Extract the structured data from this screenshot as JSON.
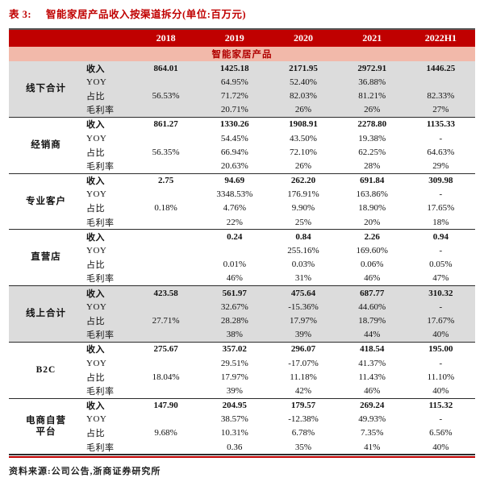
{
  "title": {
    "prefix": "表 3:",
    "text": "智能家居产品收入按渠道拆分(单位:百万元)"
  },
  "table": {
    "year_headers": [
      "2018",
      "2019",
      "2020",
      "2021",
      "2022H1"
    ],
    "product_header": "智能家居产品",
    "groups": [
      {
        "name": "线下合计",
        "shaded": true,
        "rows": [
          {
            "label": "收入",
            "values": [
              "864.01",
              "1425.18",
              "2171.95",
              "2972.91",
              "1446.25"
            ]
          },
          {
            "label": "YOY",
            "values": [
              "",
              "64.95%",
              "52.40%",
              "36.88%",
              ""
            ]
          },
          {
            "label": "占比",
            "values": [
              "56.53%",
              "71.72%",
              "82.03%",
              "81.21%",
              "82.33%"
            ]
          },
          {
            "label": "毛利率",
            "values": [
              "",
              "20.71%",
              "26%",
              "26%",
              "27%"
            ]
          }
        ]
      },
      {
        "name": "经销商",
        "shaded": false,
        "rows": [
          {
            "label": "收入",
            "values": [
              "861.27",
              "1330.26",
              "1908.91",
              "2278.80",
              "1135.33"
            ]
          },
          {
            "label": "YOY",
            "values": [
              "",
              "54.45%",
              "43.50%",
              "19.38%",
              "-"
            ]
          },
          {
            "label": "占比",
            "values": [
              "56.35%",
              "66.94%",
              "72.10%",
              "62.25%",
              "64.63%"
            ]
          },
          {
            "label": "毛利率",
            "values": [
              "",
              "20.63%",
              "26%",
              "28%",
              "29%"
            ]
          }
        ]
      },
      {
        "name": "专业客户",
        "shaded": false,
        "rows": [
          {
            "label": "收入",
            "values": [
              "2.75",
              "94.69",
              "262.20",
              "691.84",
              "309.98"
            ]
          },
          {
            "label": "YOY",
            "values": [
              "",
              "3348.53%",
              "176.91%",
              "163.86%",
              "-"
            ]
          },
          {
            "label": "占比",
            "values": [
              "0.18%",
              "4.76%",
              "9.90%",
              "18.90%",
              "17.65%"
            ]
          },
          {
            "label": "毛利率",
            "values": [
              "",
              "22%",
              "25%",
              "20%",
              "18%"
            ]
          }
        ]
      },
      {
        "name": "直营店",
        "shaded": false,
        "rows": [
          {
            "label": "收入",
            "values": [
              "",
              "0.24",
              "0.84",
              "2.26",
              "0.94"
            ]
          },
          {
            "label": "YOY",
            "values": [
              "",
              "",
              "255.16%",
              "169.60%",
              "-"
            ]
          },
          {
            "label": "占比",
            "values": [
              "",
              "0.01%",
              "0.03%",
              "0.06%",
              "0.05%"
            ]
          },
          {
            "label": "毛利率",
            "values": [
              "",
              "46%",
              "31%",
              "46%",
              "47%"
            ]
          }
        ]
      },
      {
        "name": "线上合计",
        "shaded": true,
        "rows": [
          {
            "label": "收入",
            "values": [
              "423.58",
              "561.97",
              "475.64",
              "687.77",
              "310.32"
            ]
          },
          {
            "label": "YOY",
            "values": [
              "",
              "32.67%",
              "-15.36%",
              "44.60%",
              "-"
            ]
          },
          {
            "label": "占比",
            "values": [
              "27.71%",
              "28.28%",
              "17.97%",
              "18.79%",
              "17.67%"
            ]
          },
          {
            "label": "毛利率",
            "values": [
              "",
              "38%",
              "39%",
              "44%",
              "40%"
            ]
          }
        ]
      },
      {
        "name": "B2C",
        "shaded": false,
        "rows": [
          {
            "label": "收入",
            "values": [
              "275.67",
              "357.02",
              "296.07",
              "418.54",
              "195.00"
            ]
          },
          {
            "label": "YOY",
            "values": [
              "",
              "29.51%",
              "-17.07%",
              "41.37%",
              "-"
            ]
          },
          {
            "label": "占比",
            "values": [
              "18.04%",
              "17.97%",
              "11.18%",
              "11.43%",
              "11.10%"
            ]
          },
          {
            "label": "毛利率",
            "values": [
              "",
              "39%",
              "42%",
              "46%",
              "40%"
            ]
          }
        ]
      },
      {
        "name": "电商自营平台",
        "shaded": false,
        "rows": [
          {
            "label": "收入",
            "values": [
              "147.90",
              "204.95",
              "179.57",
              "269.24",
              "115.32"
            ]
          },
          {
            "label": "YOY",
            "values": [
              "",
              "38.57%",
              "-12.38%",
              "49.93%",
              "-"
            ]
          },
          {
            "label": "占比",
            "values": [
              "9.68%",
              "10.31%",
              "6.78%",
              "7.35%",
              "6.56%"
            ]
          },
          {
            "label": "毛利率",
            "values": [
              "",
              "0.36",
              "35%",
              "41%",
              "40%"
            ]
          }
        ]
      }
    ]
  },
  "footer": "资料来源:公司公告,浙商证券研究所",
  "colors": {
    "header_bg": "#c00000",
    "header_text": "#ffffff",
    "subheader_bg": "#f2b9aa",
    "subheader_text": "#b00000",
    "shaded_bg": "#dcdcdc",
    "title_color": "#c00000",
    "rule_red": "#c00000"
  }
}
